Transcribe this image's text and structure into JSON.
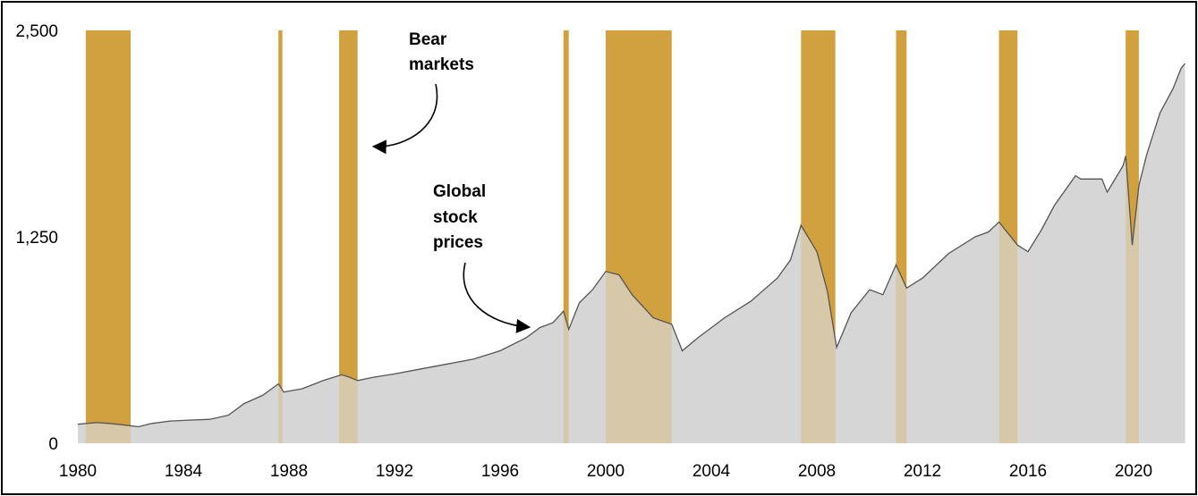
{
  "chart_data": {
    "type": "area",
    "title": "",
    "xlabel": "",
    "ylabel": "",
    "xlim": [
      1980,
      2022
    ],
    "ylim": [
      0,
      2500
    ],
    "x_ticks": [
      1980,
      1984,
      1988,
      1992,
      1996,
      2000,
      2004,
      2008,
      2012,
      2016,
      2020
    ],
    "x_tick_labels": [
      "1980",
      "1984",
      "1988",
      "1992",
      "1996",
      "2000",
      "2004",
      "2008",
      "2012",
      "2016",
      "2020"
    ],
    "y_ticks": [
      0,
      1250,
      2500
    ],
    "y_tick_labels": [
      "0",
      "1,250",
      "2,500"
    ],
    "grid": false,
    "legend": "none",
    "colors": {
      "area": "#d6d6d6",
      "line": "#555555",
      "bear": "#d1a03f",
      "bear_overlap": "#d6c8a8"
    },
    "bear_markets": [
      [
        1980.3,
        1982.0
      ],
      [
        1987.6,
        1987.75
      ],
      [
        1989.9,
        1990.6
      ],
      [
        1998.4,
        1998.6
      ],
      [
        2000.0,
        2002.5
      ],
      [
        2007.4,
        2008.7
      ],
      [
        2011.0,
        2011.4
      ],
      [
        2014.9,
        2015.6
      ],
      [
        2019.7,
        2020.2
      ]
    ],
    "series": [
      {
        "x": [
          1980.0,
          1980.7,
          1981.2,
          1981.8,
          1982.3,
          1982.8,
          1983.5,
          1984.2,
          1985.0,
          1985.7,
          1986.3,
          1987.0,
          1987.6,
          1987.8,
          1988.5,
          1989.3,
          1990.0,
          1990.3,
          1990.6,
          1991.2,
          1992.0,
          1993.0,
          1994.0,
          1995.0,
          1996.0,
          1997.0,
          1997.5,
          1998.0,
          1998.4,
          1998.6,
          1999.0,
          1999.5,
          2000.0,
          2000.5,
          2001.0,
          2001.8,
          2002.5,
          2002.9,
          2003.5,
          2004.5,
          2005.5,
          2006.5,
          2007.0,
          2007.4,
          2008.0,
          2008.4,
          2008.75,
          2009.3,
          2010.0,
          2010.5,
          2011.0,
          2011.4,
          2012.0,
          2013.0,
          2014.0,
          2014.5,
          2014.9,
          2015.6,
          2016.0,
          2016.5,
          2017.0,
          2017.8,
          2018.0,
          2018.8,
          2019.0,
          2019.6,
          2019.7,
          2019.95,
          2020.2,
          2020.5,
          2021.0,
          2021.5,
          2021.8,
          2021.95
        ],
        "y": [
          115,
          125,
          120,
          110,
          100,
          120,
          135,
          140,
          145,
          170,
          240,
          290,
          360,
          310,
          330,
          380,
          415,
          400,
          380,
          400,
          420,
          450,
          480,
          510,
          560,
          640,
          700,
          730,
          800,
          690,
          850,
          930,
          1040,
          1020,
          900,
          760,
          720,
          560,
          640,
          760,
          860,
          1000,
          1110,
          1320,
          1160,
          920,
          580,
          790,
          930,
          900,
          1080,
          940,
          1000,
          1150,
          1250,
          1280,
          1340,
          1200,
          1160,
          1290,
          1440,
          1620,
          1600,
          1600,
          1520,
          1680,
          1740,
          1200,
          1560,
          1750,
          2000,
          2150,
          2270,
          2300
        ]
      }
    ],
    "annotations": {
      "bear_line1": "Bear",
      "bear_line2": "markets",
      "stock_line1": "Global",
      "stock_line2": "stock",
      "stock_line3": "prices"
    }
  }
}
